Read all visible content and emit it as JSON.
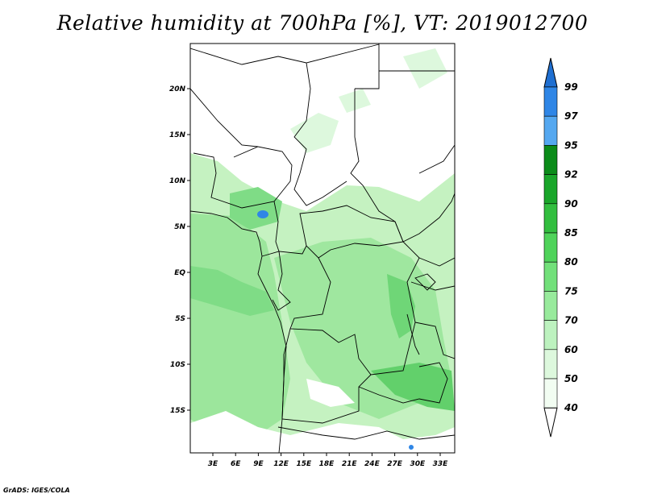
{
  "title": "Relative humidity at 700hPa [%], VT: 2019012700",
  "footer": "GrADS: IGES/COLA",
  "lat_ticks": [
    "20N",
    "15N",
    "10N",
    "5N",
    "EQ",
    "5S",
    "10S",
    "15S"
  ],
  "lon_ticks": [
    "3E",
    "6E",
    "9E",
    "12E",
    "15E",
    "18E",
    "21E",
    "24E",
    "27E",
    "30E",
    "33E"
  ],
  "colorbar": {
    "labels": [
      "99",
      "97",
      "95",
      "92",
      "90",
      "85",
      "80",
      "75",
      "70",
      "60",
      "50",
      "40"
    ],
    "colors": [
      "#1f6fd1",
      "#2f86e6",
      "#55a8f0",
      "#0b8c1a",
      "#1aa62a",
      "#32be3f",
      "#4fd35a",
      "#72e07a",
      "#98ea9c",
      "#bdf2bf",
      "#ddf8dd",
      "#f2fdf2",
      "#ffffff"
    ]
  },
  "colors": {
    "ocean_moist": "#7fdc86",
    "land_moist": "#a6ec9f",
    "dry": "#ffffff"
  }
}
